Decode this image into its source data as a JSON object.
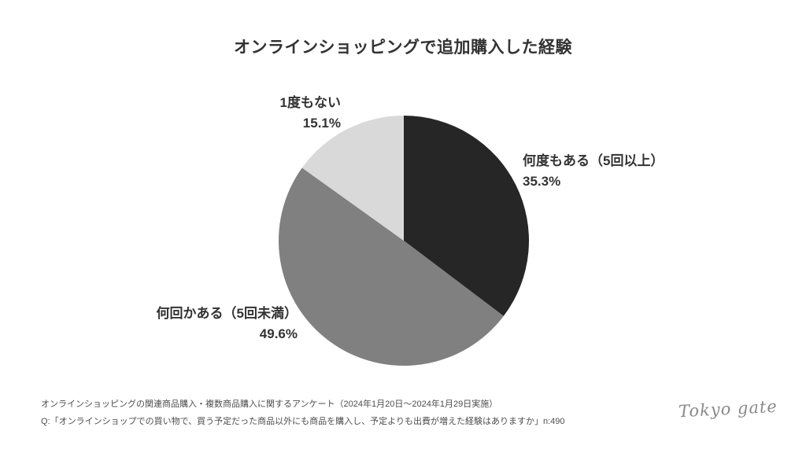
{
  "title": "オンラインショッピングで追加購入した経験",
  "chart_data": {
    "type": "pie",
    "title": "オンラインショッピングで追加購入した経験",
    "start_angle_deg": 0,
    "direction": "clockwise",
    "slices": [
      {
        "label": "何度もある（5回以上）",
        "value": 35.3,
        "pct_label": "35.3%",
        "color": "#262626"
      },
      {
        "label": "何回かある（5回未満）",
        "value": 49.6,
        "pct_label": "49.6%",
        "color": "#808080"
      },
      {
        "label": "1度もない",
        "value": 15.1,
        "pct_label": "15.1%",
        "color": "#d9d9d9"
      }
    ],
    "value_suffix": "%",
    "legend_position": "outside-labels",
    "total": 100
  },
  "footer": {
    "line1": "オンラインショッピングの関連商品購入・複数商品購入に関するアンケート（2024年1月20日～2024年1月29日実施）",
    "line2": "Q:「オンラインショップでの買い物で、買う予定だった商品以外にも商品を購入し、予定よりも出費が増えた経験はありますか」n:490"
  },
  "logo_text": "Tokyo gate"
}
